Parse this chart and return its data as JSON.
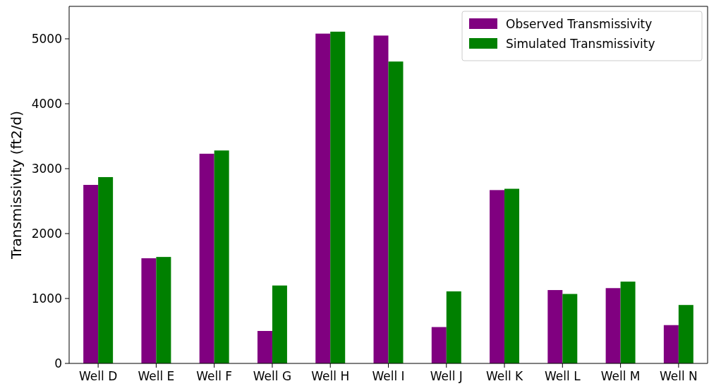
{
  "chart_data": {
    "type": "bar",
    "ylabel": "Transmissivity (ft2/d)",
    "categories": [
      "Well D",
      "Well E",
      "Well F",
      "Well G",
      "Well H",
      "Well I",
      "Well J",
      "Well K",
      "Well L",
      "Well M",
      "Well N"
    ],
    "series": [
      {
        "name": "Observed Transmissivity",
        "color": "#800080",
        "values": [
          2750,
          1620,
          3230,
          500,
          5080,
          5050,
          560,
          2670,
          1130,
          1160,
          590
        ]
      },
      {
        "name": "Simulated Transmissivity",
        "color": "#008000",
        "values": [
          2870,
          1640,
          3280,
          1200,
          5110,
          4650,
          1110,
          2690,
          1070,
          1260,
          900
        ]
      }
    ],
    "ylim": [
      0,
      5500
    ],
    "yticks": [
      0,
      1000,
      2000,
      3000,
      4000,
      5000
    ],
    "legend": "top right"
  }
}
